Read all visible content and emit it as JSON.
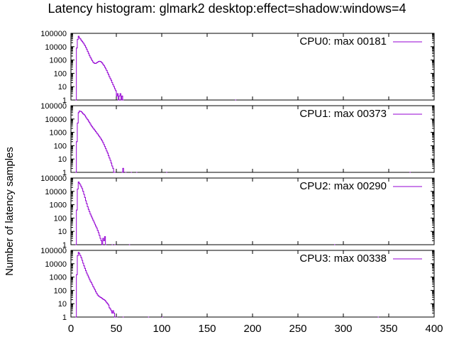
{
  "chart_data": {
    "type": "histogram",
    "title": "Latency histogram:  glmark2 desktop:effect=shadow:windows=4",
    "ylabel": "Number of latency samples",
    "xlabel": "",
    "xlim": [
      0,
      400
    ],
    "x_ticks": [
      "0",
      "50",
      "100",
      "150",
      "200",
      "250",
      "300",
      "350",
      "400"
    ],
    "yscale": "log",
    "ylim": [
      1,
      100000
    ],
    "y_ticks": [
      "1",
      "10",
      "100",
      "1000",
      "10000",
      "100000"
    ],
    "colors": {
      "series": "#9400d3",
      "axis": "#000000"
    },
    "legend_position": "top-right",
    "panels": [
      {
        "legend": "CPU0: max 00181",
        "points": [
          [
            5,
            1
          ],
          [
            6,
            8000
          ],
          [
            7,
            35000
          ],
          [
            8,
            60000
          ],
          [
            9,
            45000
          ],
          [
            10,
            38000
          ],
          [
            11,
            30000
          ],
          [
            12,
            25000
          ],
          [
            13,
            20000
          ],
          [
            14,
            16000
          ],
          [
            15,
            12000
          ],
          [
            16,
            9000
          ],
          [
            17,
            6500
          ],
          [
            18,
            4500
          ],
          [
            19,
            3200
          ],
          [
            20,
            2200
          ],
          [
            21,
            1600
          ],
          [
            22,
            1200
          ],
          [
            23,
            900
          ],
          [
            24,
            700
          ],
          [
            25,
            600
          ],
          [
            26,
            550
          ],
          [
            27,
            560
          ],
          [
            28,
            620
          ],
          [
            29,
            700
          ],
          [
            30,
            760
          ],
          [
            31,
            800
          ],
          [
            32,
            780
          ],
          [
            33,
            700
          ],
          [
            34,
            600
          ],
          [
            35,
            480
          ],
          [
            36,
            380
          ],
          [
            37,
            290
          ],
          [
            38,
            220
          ],
          [
            39,
            160
          ],
          [
            40,
            110
          ],
          [
            41,
            80
          ],
          [
            42,
            55
          ],
          [
            43,
            40
          ],
          [
            44,
            30
          ],
          [
            45,
            20
          ],
          [
            46,
            14
          ],
          [
            47,
            10
          ],
          [
            48,
            7
          ],
          [
            49,
            5
          ],
          [
            50,
            2
          ],
          [
            51,
            3
          ],
          [
            52,
            1
          ],
          [
            53,
            2
          ],
          [
            54,
            3
          ],
          [
            55,
            1
          ],
          [
            56,
            2
          ],
          [
            57,
            1
          ],
          [
            181,
            1
          ]
        ]
      },
      {
        "legend": "CPU1: max 00373",
        "points": [
          [
            5,
            1
          ],
          [
            6,
            200
          ],
          [
            7,
            5000
          ],
          [
            8,
            30000
          ],
          [
            9,
            40000
          ],
          [
            10,
            38000
          ],
          [
            11,
            36000
          ],
          [
            12,
            30000
          ],
          [
            13,
            25000
          ],
          [
            14,
            22000
          ],
          [
            15,
            18000
          ],
          [
            16,
            14000
          ],
          [
            17,
            11000
          ],
          [
            18,
            9000
          ],
          [
            19,
            7000
          ],
          [
            20,
            5500
          ],
          [
            21,
            4200
          ],
          [
            22,
            3200
          ],
          [
            23,
            2600
          ],
          [
            24,
            2100
          ],
          [
            25,
            1700
          ],
          [
            26,
            1400
          ],
          [
            27,
            1150
          ],
          [
            28,
            900
          ],
          [
            29,
            750
          ],
          [
            30,
            600
          ],
          [
            31,
            480
          ],
          [
            32,
            380
          ],
          [
            33,
            300
          ],
          [
            34,
            230
          ],
          [
            35,
            170
          ],
          [
            36,
            120
          ],
          [
            37,
            85
          ],
          [
            38,
            60
          ],
          [
            39,
            40
          ],
          [
            40,
            28
          ],
          [
            41,
            18
          ],
          [
            42,
            12
          ],
          [
            43,
            8
          ],
          [
            44,
            5
          ],
          [
            45,
            3
          ],
          [
            46,
            2
          ],
          [
            47,
            1
          ],
          [
            48,
            1
          ],
          [
            56,
            1
          ],
          [
            57,
            2
          ],
          [
            60,
            1
          ],
          [
            66,
            1
          ],
          [
            72,
            1
          ],
          [
            105,
            1
          ],
          [
            373,
            1
          ]
        ]
      },
      {
        "legend": "CPU2: max 00290",
        "points": [
          [
            5,
            1
          ],
          [
            6,
            400
          ],
          [
            7,
            15000
          ],
          [
            8,
            50000
          ],
          [
            9,
            40000
          ],
          [
            10,
            30000
          ],
          [
            11,
            22000
          ],
          [
            12,
            16000
          ],
          [
            13,
            10000
          ],
          [
            14,
            6000
          ],
          [
            15,
            3500
          ],
          [
            16,
            2000
          ],
          [
            17,
            1200
          ],
          [
            18,
            700
          ],
          [
            19,
            450
          ],
          [
            20,
            300
          ],
          [
            21,
            200
          ],
          [
            22,
            140
          ],
          [
            23,
            100
          ],
          [
            24,
            70
          ],
          [
            25,
            50
          ],
          [
            26,
            35
          ],
          [
            27,
            25
          ],
          [
            28,
            18
          ],
          [
            29,
            12
          ],
          [
            30,
            8
          ],
          [
            31,
            5
          ],
          [
            32,
            3
          ],
          [
            33,
            2
          ],
          [
            34,
            1
          ],
          [
            35,
            3
          ],
          [
            36,
            2
          ],
          [
            37,
            4
          ],
          [
            38,
            1
          ],
          [
            45,
            1
          ],
          [
            48,
            1
          ],
          [
            64,
            1
          ],
          [
            290,
            1
          ]
        ]
      },
      {
        "legend": "CPU3: max 00338",
        "points": [
          [
            5,
            1
          ],
          [
            6,
            1500
          ],
          [
            7,
            40000
          ],
          [
            8,
            70000
          ],
          [
            9,
            55000
          ],
          [
            10,
            40000
          ],
          [
            11,
            28000
          ],
          [
            12,
            18000
          ],
          [
            13,
            11000
          ],
          [
            14,
            7000
          ],
          [
            15,
            4500
          ],
          [
            16,
            3000
          ],
          [
            17,
            2000
          ],
          [
            18,
            1400
          ],
          [
            19,
            1000
          ],
          [
            20,
            700
          ],
          [
            21,
            500
          ],
          [
            22,
            380
          ],
          [
            23,
            280
          ],
          [
            24,
            200
          ],
          [
            25,
            150
          ],
          [
            26,
            110
          ],
          [
            27,
            80
          ],
          [
            28,
            60
          ],
          [
            29,
            45
          ],
          [
            30,
            38
          ],
          [
            31,
            35
          ],
          [
            32,
            30
          ],
          [
            33,
            28
          ],
          [
            34,
            25
          ],
          [
            35,
            22
          ],
          [
            36,
            20
          ],
          [
            37,
            18
          ],
          [
            38,
            15
          ],
          [
            39,
            12
          ],
          [
            40,
            10
          ],
          [
            41,
            8
          ],
          [
            42,
            5
          ],
          [
            43,
            4
          ],
          [
            44,
            3
          ],
          [
            45,
            2
          ],
          [
            46,
            3
          ],
          [
            47,
            2
          ],
          [
            48,
            1
          ],
          [
            50,
            1
          ],
          [
            57,
            1
          ],
          [
            85,
            1
          ],
          [
            100,
            1
          ],
          [
            338,
            1
          ]
        ]
      }
    ]
  }
}
